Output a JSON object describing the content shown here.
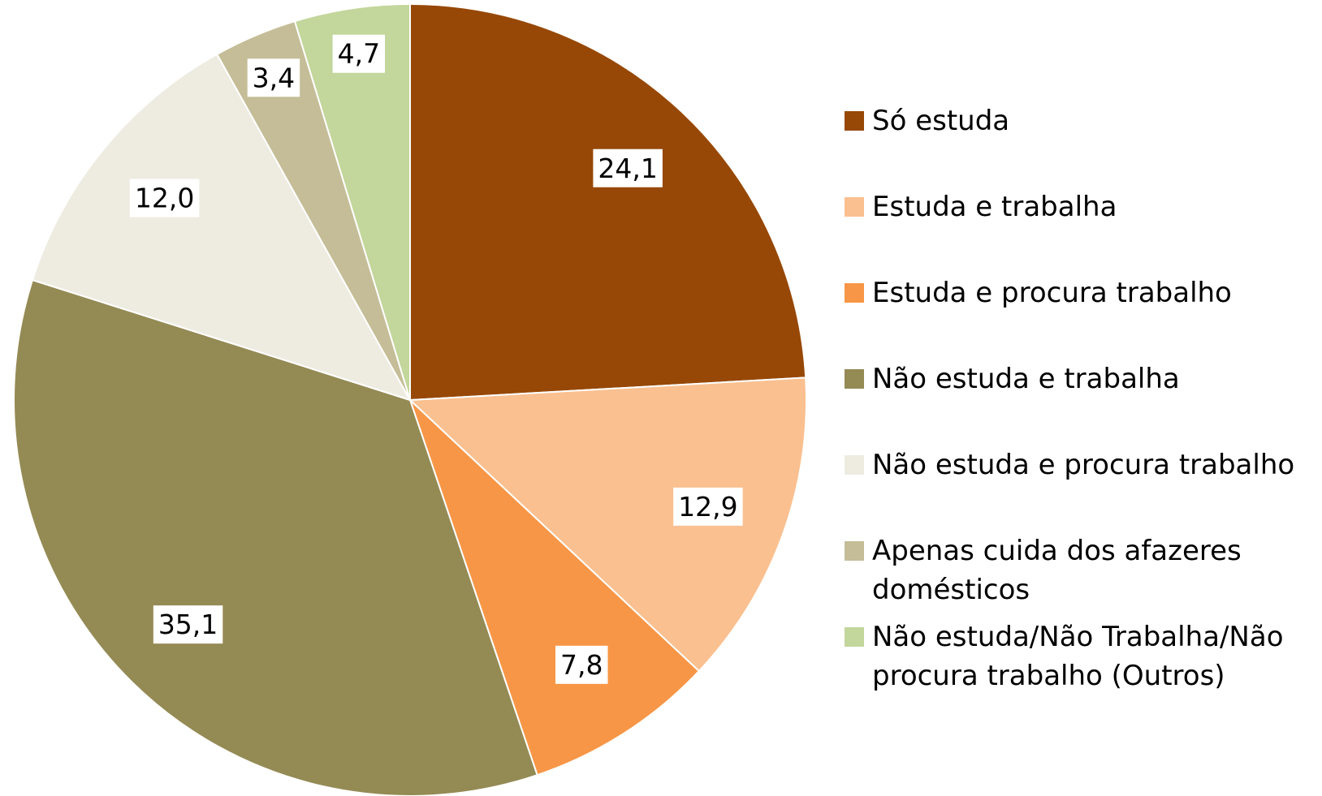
{
  "chart_data": {
    "type": "pie",
    "categories": [
      "Só estuda",
      "Estuda e trabalha",
      "Estuda e procura trabalho",
      "Não estuda e trabalha",
      "Não estuda e procura trabalho",
      "Apenas cuida dos afazeres domésticos",
      "Não estuda/Não Trabalha/Não procura trabalho (Outros)"
    ],
    "values": [
      24.1,
      12.9,
      7.8,
      35.1,
      12.0,
      3.4,
      4.7
    ],
    "value_labels": [
      "24,1",
      "12,9",
      "7,8",
      "35,1",
      "12,0",
      "3,4",
      "4,7"
    ],
    "colors": [
      "#974806",
      "#fac090",
      "#f79646",
      "#948a54",
      "#eeece1",
      "#c4bd97",
      "#c3d69b"
    ]
  }
}
